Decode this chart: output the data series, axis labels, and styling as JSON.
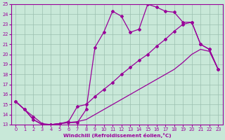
{
  "xlabel": "Windchill (Refroidissement éolien,°C)",
  "xlim": [
    -0.5,
    23.5
  ],
  "ylim": [
    13,
    25
  ],
  "xticks": [
    0,
    1,
    2,
    3,
    4,
    5,
    6,
    7,
    8,
    9,
    10,
    11,
    12,
    13,
    14,
    15,
    16,
    17,
    18,
    19,
    20,
    21,
    22,
    23
  ],
  "yticks": [
    13,
    14,
    15,
    16,
    17,
    18,
    19,
    20,
    21,
    22,
    23,
    24,
    25
  ],
  "bg_color": "#c8e8d8",
  "line_color": "#990099",
  "grid_color": "#9bbfaf",
  "line1_x": [
    0,
    1,
    2,
    3,
    4,
    5,
    6,
    7,
    8,
    9,
    10,
    11,
    12,
    13,
    14,
    15,
    16,
    17,
    18,
    19,
    20,
    21,
    22,
    23
  ],
  "line1_y": [
    15.3,
    14.5,
    13.8,
    13.1,
    13.0,
    13.1,
    13.2,
    13.2,
    14.5,
    20.7,
    22.2,
    24.3,
    23.8,
    22.2,
    22.5,
    25.0,
    24.7,
    24.3,
    24.2,
    23.2,
    23.2,
    21.0,
    20.5,
    18.5
  ],
  "line2_x": [
    0,
    1,
    2,
    3,
    4,
    5,
    6,
    7,
    8,
    9,
    10,
    11,
    12,
    13,
    14,
    15,
    16,
    17,
    18,
    19,
    20,
    21,
    22,
    23
  ],
  "line2_y": [
    15.3,
    14.5,
    13.5,
    13.0,
    13.0,
    13.1,
    13.3,
    14.8,
    15.0,
    15.8,
    16.5,
    17.2,
    18.0,
    18.7,
    19.4,
    20.0,
    20.8,
    21.5,
    22.3,
    23.0,
    23.2,
    21.0,
    20.5,
    18.5
  ],
  "line3_x": [
    0,
    1,
    2,
    3,
    4,
    5,
    6,
    7,
    8,
    9,
    10,
    11,
    12,
    13,
    14,
    15,
    16,
    17,
    18,
    19,
    20,
    21,
    22,
    23
  ],
  "line3_y": [
    15.3,
    14.5,
    13.5,
    13.0,
    13.0,
    13.1,
    13.2,
    13.3,
    13.5,
    14.0,
    14.5,
    15.0,
    15.5,
    16.0,
    16.5,
    17.0,
    17.5,
    18.0,
    18.5,
    19.2,
    20.0,
    20.5,
    20.3,
    18.5
  ]
}
